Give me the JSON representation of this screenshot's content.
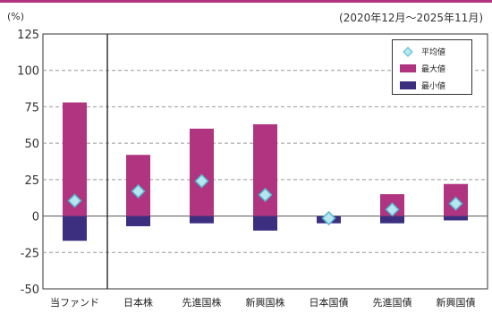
{
  "chart_data": {
    "type": "bar",
    "unit_label": "(%)",
    "period_label": "(2020年12月～2025年11月)",
    "categories": [
      "当ファンド",
      "日本株",
      "先進国株",
      "新興国株",
      "日本国債",
      "先進国債",
      "新興国債"
    ],
    "series": [
      {
        "name": "最大値",
        "values": [
          78,
          42,
          60,
          63,
          0,
          15,
          22
        ],
        "color": "#b0347f"
      },
      {
        "name": "最小値",
        "values": [
          -17,
          -7,
          -5,
          -10,
          -5,
          -5,
          -3
        ],
        "color": "#3d2f80"
      },
      {
        "name": "平均値",
        "values": [
          10.5,
          17,
          24,
          14.5,
          -1.5,
          4.5,
          8.5
        ],
        "color": "#b8e6ee"
      }
    ],
    "y_ticks": [
      "125",
      "100",
      "75",
      "50",
      "25",
      "0",
      "-25",
      "-50"
    ],
    "ylim": [
      -50,
      125
    ],
    "grid": true,
    "legend_position": "top-right"
  }
}
